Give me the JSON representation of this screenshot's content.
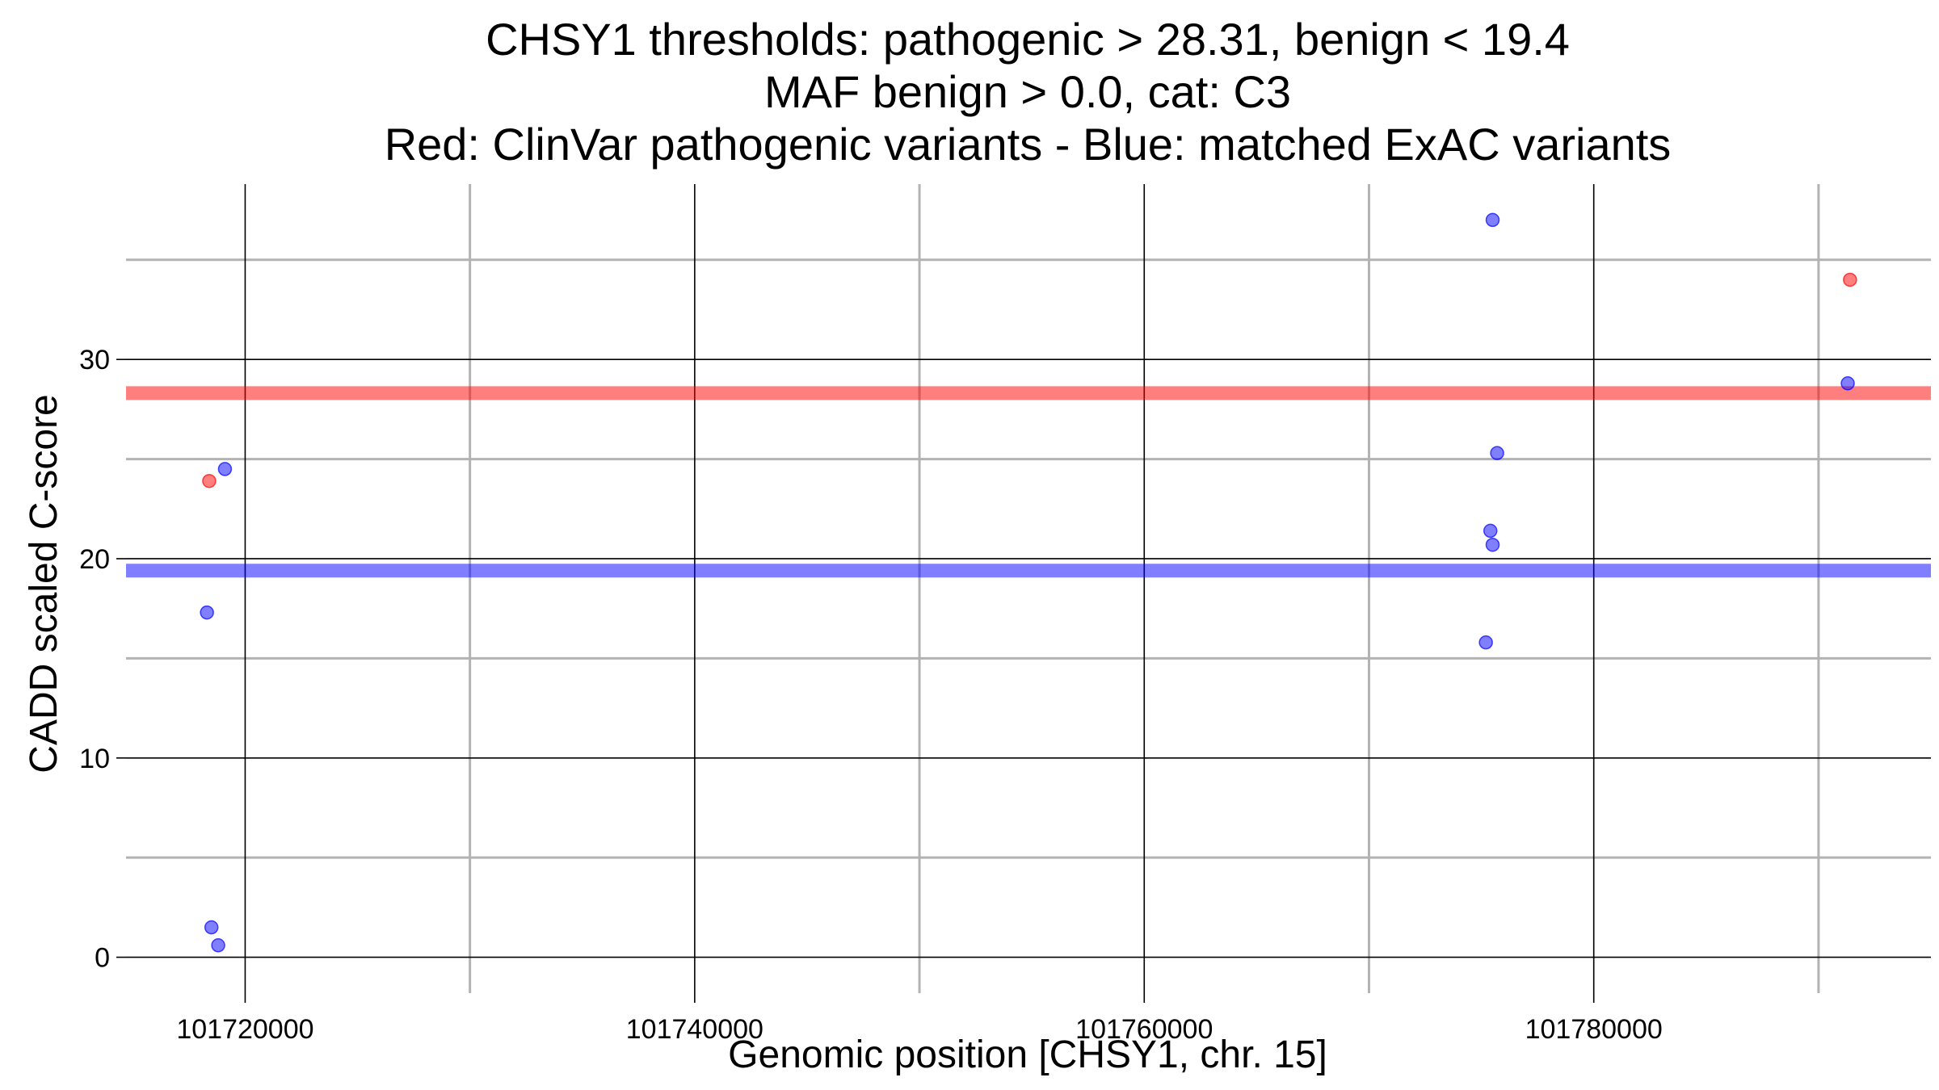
{
  "chart_data": {
    "type": "scatter",
    "title_lines": [
      "CHSY1 thresholds: pathogenic > 28.31, benign < 19.4",
      "MAF benign > 0.0, cat: C3",
      "Red: ClinVar pathogenic variants - Blue: matched ExAC variants"
    ],
    "xlabel": "Genomic position [CHSY1, chr. 15]",
    "ylabel": "CADD scaled C-score",
    "xlim": [
      101714700,
      101795000
    ],
    "ylim": [
      -1.8,
      38.8
    ],
    "x_ticks": [
      101720000,
      101740000,
      101760000,
      101780000
    ],
    "x_minor_grid": [
      101730000,
      101750000,
      101770000,
      101790000
    ],
    "y_ticks": [
      0,
      10,
      20,
      30
    ],
    "y_minor_grid": [
      5,
      15,
      25,
      35
    ],
    "grid": true,
    "colors": {
      "pathogenic": "#ff0000",
      "benign": "#0000ff",
      "major_grid": "#000000",
      "minor_grid": "#b3b3b3"
    },
    "thresholds": [
      {
        "name": "pathogenic",
        "value": 28.31,
        "color": "#ff0000"
      },
      {
        "name": "benign",
        "value": 19.4,
        "color": "#0000ff"
      }
    ],
    "series": [
      {
        "name": "ClinVar pathogenic variants",
        "color": "#ff0000",
        "points": [
          {
            "x": 101718400,
            "y": 23.9
          },
          {
            "x": 101791400,
            "y": 34.0
          }
        ]
      },
      {
        "name": "matched ExAC variants",
        "color": "#0000ff",
        "points": [
          {
            "x": 101719100,
            "y": 24.5
          },
          {
            "x": 101718300,
            "y": 17.3
          },
          {
            "x": 101718500,
            "y": 1.5
          },
          {
            "x": 101718800,
            "y": 0.6
          },
          {
            "x": 101775500,
            "y": 37.0
          },
          {
            "x": 101775700,
            "y": 25.3
          },
          {
            "x": 101775400,
            "y": 21.4
          },
          {
            "x": 101775500,
            "y": 20.7
          },
          {
            "x": 101775200,
            "y": 15.8
          },
          {
            "x": 101791300,
            "y": 28.8
          }
        ]
      }
    ]
  }
}
